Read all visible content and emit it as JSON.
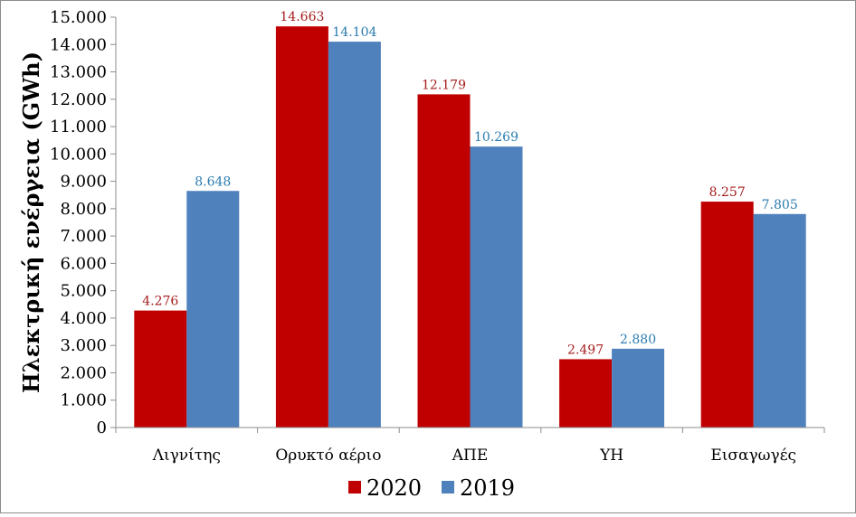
{
  "chart_data": {
    "type": "bar",
    "title": "",
    "xlabel": "",
    "ylabel": "Ηλεκτρική ενέργεια (GWh)",
    "categories": [
      "Λιγνίτης",
      "Ορυκτό αέριο",
      "ΑΠΕ",
      "ΥΗ",
      "Εισαγωγές"
    ],
    "series": [
      {
        "name": "2020",
        "color": "#c00000",
        "values": [
          4276,
          14663,
          12179,
          2497,
          8257
        ],
        "labels": [
          "4.276",
          "14.663",
          "12.179",
          "2.497",
          "8.257"
        ]
      },
      {
        "name": "2019",
        "color": "#4f81bd",
        "values": [
          8648,
          14104,
          10269,
          2880,
          7805
        ],
        "labels": [
          "8.648",
          "14.104",
          "10.269",
          "2.880",
          "7.805"
        ]
      }
    ],
    "ylim": [
      0,
      15000
    ],
    "yticks": [
      0,
      1000,
      2000,
      3000,
      4000,
      5000,
      6000,
      7000,
      8000,
      9000,
      10000,
      11000,
      12000,
      13000,
      14000,
      15000
    ],
    "ytick_labels": [
      "0",
      "1.000",
      "2.000",
      "3.000",
      "4.000",
      "5.000",
      "6.000",
      "7.000",
      "8.000",
      "9.000",
      "10.000",
      "11.000",
      "12.000",
      "13.000",
      "14.000",
      "15.000"
    ],
    "data_label_colors": [
      "#a51c1c",
      "#2a7bb0"
    ],
    "grid": false,
    "legend_position": "bottom"
  }
}
